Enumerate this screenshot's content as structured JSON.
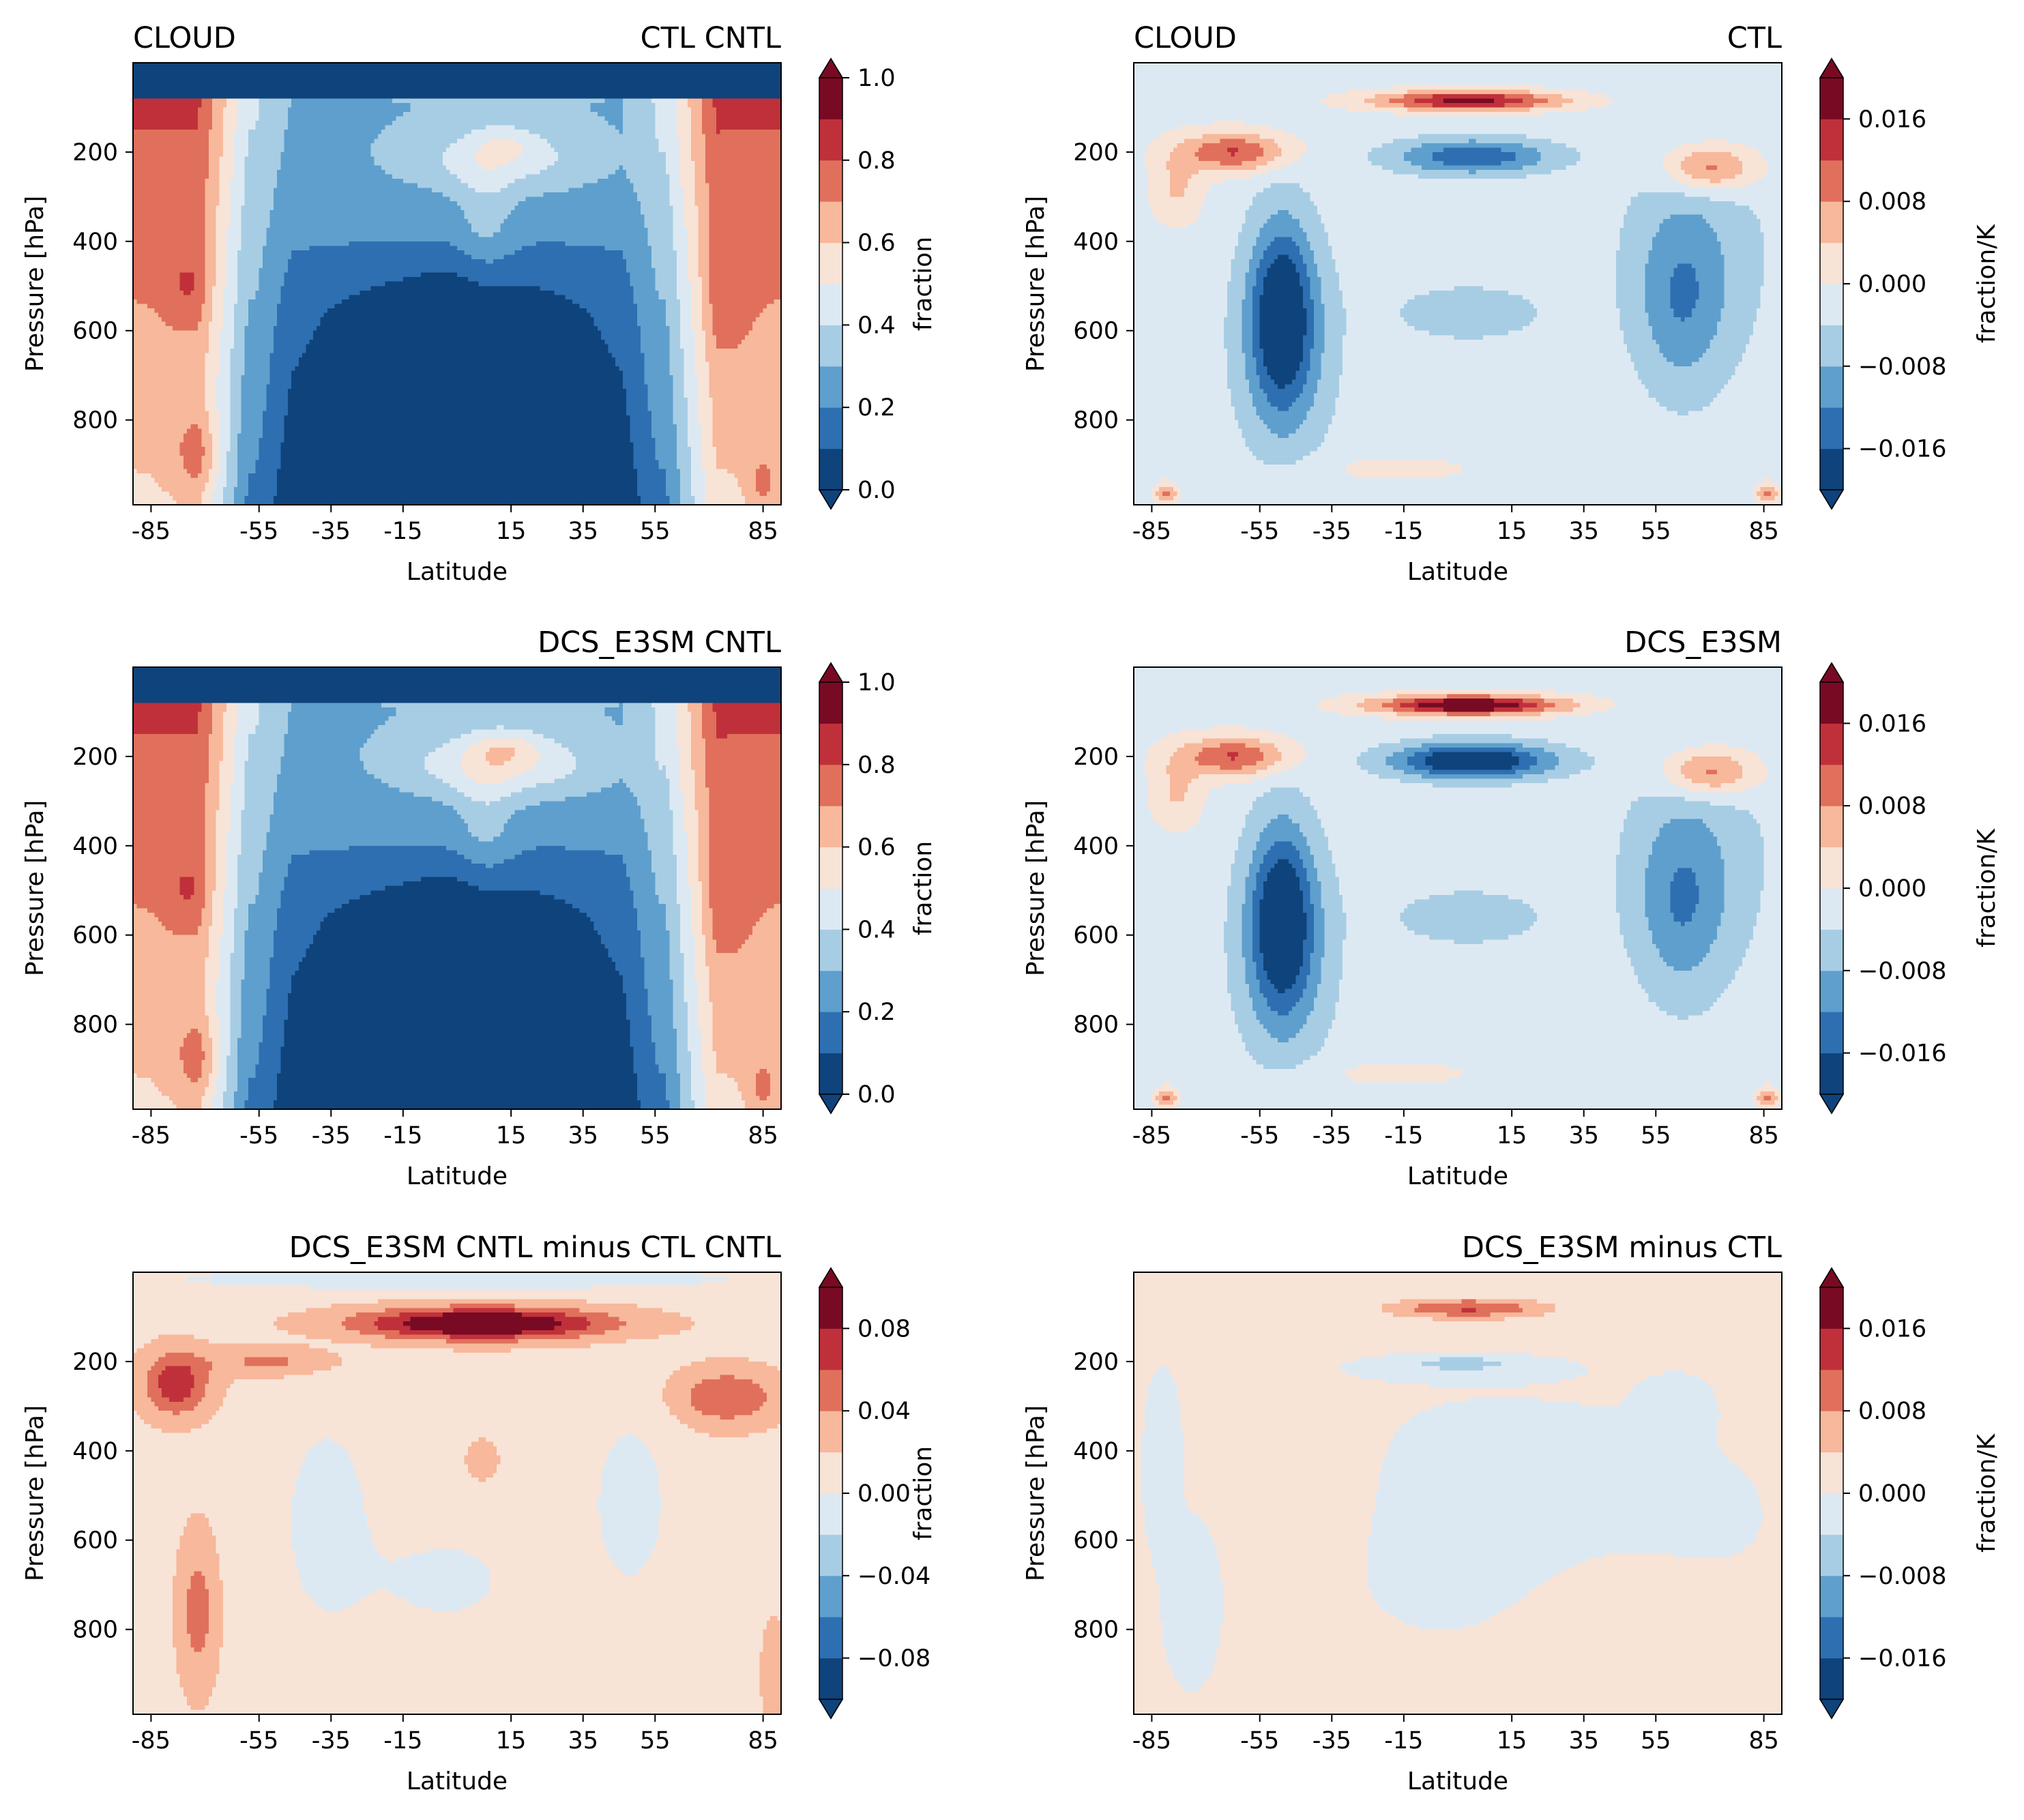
{
  "chart_data": [
    {
      "type": "heatmap",
      "title_left": "CLOUD",
      "title_right": "CTL CNTL",
      "xlabel": "Latitude",
      "ylabel": "Pressure [hPa]",
      "xlim": [
        -90,
        90
      ],
      "ylim": [
        990,
        0
      ],
      "xticks": [
        -85,
        -55,
        -35,
        -15,
        15,
        35,
        55,
        85
      ],
      "xtick_labels": [
        "-85",
        "-55",
        "-35",
        "-15",
        "15",
        "35",
        "55",
        "85"
      ],
      "yticks": [
        200,
        400,
        600,
        800
      ],
      "ytick_labels": [
        "200",
        "400",
        "600",
        "800"
      ],
      "colorbar": {
        "label": "fraction",
        "levels": [
          0,
          0.1,
          0.2,
          0.3,
          0.4,
          0.5,
          0.6,
          0.7,
          0.8,
          0.9,
          1.0
        ],
        "ticks": [
          0,
          0.2,
          0.4,
          0.6,
          0.8,
          1.0
        ],
        "tick_labels": [
          "0.0",
          "0.2",
          "0.4",
          "0.6",
          "0.8",
          "1.0"
        ]
      },
      "field": "cloud_fraction"
    },
    {
      "type": "heatmap",
      "title_left": "CLOUD",
      "title_right": "CTL",
      "xlabel": "Latitude",
      "ylabel": "Pressure [hPa]",
      "xlim": [
        -90,
        90
      ],
      "ylim": [
        990,
        0
      ],
      "xticks": [
        -85,
        -55,
        -35,
        -15,
        15,
        35,
        55,
        85
      ],
      "xtick_labels": [
        "-85",
        "-55",
        "-35",
        "-15",
        "15",
        "35",
        "55",
        "85"
      ],
      "yticks": [
        200,
        400,
        600,
        800
      ],
      "ytick_labels": [
        "200",
        "400",
        "600",
        "800"
      ],
      "colorbar": {
        "label": "fraction/K",
        "levels": [
          -0.02,
          -0.016,
          -0.012,
          -0.008,
          -0.004,
          0,
          0.004,
          0.008,
          0.012,
          0.016,
          0.02
        ],
        "ticks": [
          -0.016,
          -0.008,
          0,
          0.008,
          0.016
        ],
        "tick_labels": [
          "−0.016",
          "−0.008",
          "0.000",
          "0.008",
          "0.016"
        ]
      },
      "field": "feedback"
    },
    {
      "type": "heatmap",
      "title_left": "",
      "title_right": "DCS_E3SM CNTL",
      "xlabel": "Latitude",
      "ylabel": "Pressure [hPa]",
      "xlim": [
        -90,
        90
      ],
      "ylim": [
        990,
        0
      ],
      "xticks": [
        -85,
        -55,
        -35,
        -15,
        15,
        35,
        55,
        85
      ],
      "xtick_labels": [
        "-85",
        "-55",
        "-35",
        "-15",
        "15",
        "35",
        "55",
        "85"
      ],
      "yticks": [
        200,
        400,
        600,
        800
      ],
      "ytick_labels": [
        "200",
        "400",
        "600",
        "800"
      ],
      "colorbar": {
        "label": "fraction",
        "levels": [
          0,
          0.1,
          0.2,
          0.3,
          0.4,
          0.5,
          0.6,
          0.7,
          0.8,
          0.9,
          1.0
        ],
        "ticks": [
          0,
          0.2,
          0.4,
          0.6,
          0.8,
          1.0
        ],
        "tick_labels": [
          "0.0",
          "0.2",
          "0.4",
          "0.6",
          "0.8",
          "1.0"
        ]
      },
      "field": "cloud_fraction_dcs"
    },
    {
      "type": "heatmap",
      "title_left": "",
      "title_right": "DCS_E3SM",
      "xlabel": "Latitude",
      "ylabel": "Pressure [hPa]",
      "xlim": [
        -90,
        90
      ],
      "ylim": [
        990,
        0
      ],
      "xticks": [
        -85,
        -55,
        -35,
        -15,
        15,
        35,
        55,
        85
      ],
      "xtick_labels": [
        "-85",
        "-55",
        "-35",
        "-15",
        "15",
        "35",
        "55",
        "85"
      ],
      "yticks": [
        200,
        400,
        600,
        800
      ],
      "ytick_labels": [
        "200",
        "400",
        "600",
        "800"
      ],
      "colorbar": {
        "label": "fraction/K",
        "levels": [
          -0.02,
          -0.016,
          -0.012,
          -0.008,
          -0.004,
          0,
          0.004,
          0.008,
          0.012,
          0.016,
          0.02
        ],
        "ticks": [
          -0.016,
          -0.008,
          0,
          0.008,
          0.016
        ],
        "tick_labels": [
          "−0.016",
          "−0.008",
          "0.000",
          "0.008",
          "0.016"
        ]
      },
      "field": "feedback_dcs"
    },
    {
      "type": "heatmap",
      "title_left": "",
      "title_right": "DCS_E3SM CNTL minus CTL CNTL",
      "xlabel": "Latitude",
      "ylabel": "Pressure [hPa]",
      "xlim": [
        -90,
        90
      ],
      "ylim": [
        990,
        0
      ],
      "xticks": [
        -85,
        -55,
        -35,
        -15,
        15,
        35,
        55,
        85
      ],
      "xtick_labels": [
        "-85",
        "-55",
        "-35",
        "-15",
        "15",
        "35",
        "55",
        "85"
      ],
      "yticks": [
        200,
        400,
        600,
        800
      ],
      "ytick_labels": [
        "200",
        "400",
        "600",
        "800"
      ],
      "colorbar": {
        "label": "fraction",
        "levels": [
          -0.1,
          -0.08,
          -0.06,
          -0.04,
          -0.02,
          0,
          0.02,
          0.04,
          0.06,
          0.08,
          0.1
        ],
        "ticks": [
          -0.08,
          -0.04,
          0,
          0.04,
          0.08
        ],
        "tick_labels": [
          "−0.08",
          "−0.04",
          "0.00",
          "0.04",
          "0.08"
        ]
      },
      "field": "cloud_fraction_diff"
    },
    {
      "type": "heatmap",
      "title_left": "",
      "title_right": "DCS_E3SM minus CTL",
      "xlabel": "Latitude",
      "ylabel": "Pressure [hPa]",
      "xlim": [
        -90,
        90
      ],
      "ylim": [
        990,
        0
      ],
      "xticks": [
        -85,
        -55,
        -35,
        -15,
        15,
        35,
        55,
        85
      ],
      "xtick_labels": [
        "-85",
        "-55",
        "-35",
        "-15",
        "15",
        "35",
        "55",
        "85"
      ],
      "yticks": [
        200,
        400,
        600,
        800
      ],
      "ytick_labels": [
        "200",
        "400",
        "600",
        "800"
      ],
      "colorbar": {
        "label": "fraction/K",
        "levels": [
          -0.02,
          -0.016,
          -0.012,
          -0.008,
          -0.004,
          0,
          0.004,
          0.008,
          0.012,
          0.016,
          0.02
        ],
        "ticks": [
          -0.016,
          -0.008,
          0,
          0.008,
          0.016
        ],
        "tick_labels": [
          "−0.016",
          "−0.008",
          "0.000",
          "0.008",
          "0.016"
        ]
      },
      "field": "feedback_diff"
    }
  ],
  "colors": {
    "palette_RdBu_r": [
      "#0f437b",
      "#2d6fb1",
      "#5e9fcd",
      "#a7cde4",
      "#dde9f2",
      "#f8e3d7",
      "#f7b89b",
      "#e0705b",
      "#c0303a",
      "#780a24"
    ]
  }
}
